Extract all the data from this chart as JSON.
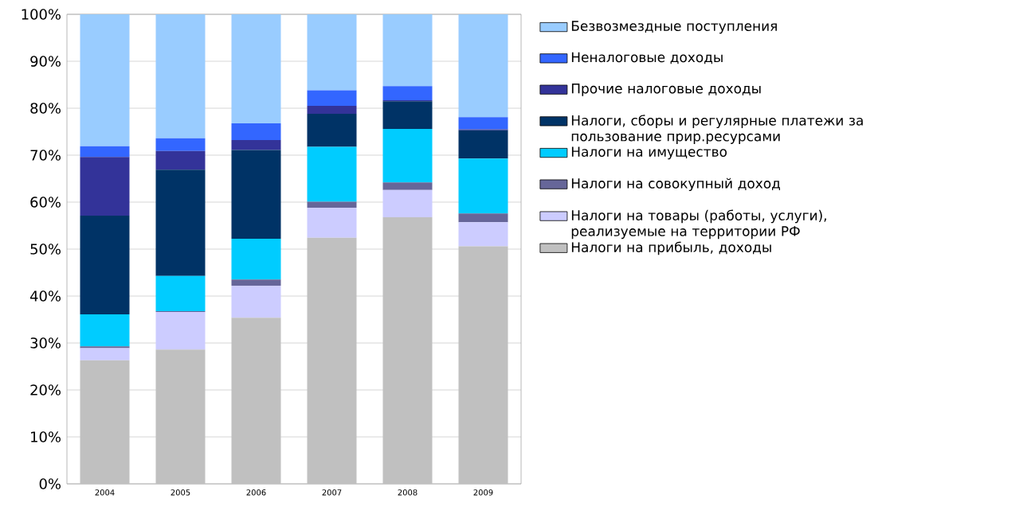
{
  "chart_data": {
    "type": "bar",
    "stacked": true,
    "categories": [
      "2004",
      "2005",
      "2006",
      "2007",
      "2008",
      "2009"
    ],
    "ylim": [
      0,
      100
    ],
    "yticks": [
      {
        "value": 0,
        "label": "0%"
      },
      {
        "value": 10,
        "label": "10%"
      },
      {
        "value": 20,
        "label": "20%"
      },
      {
        "value": 30,
        "label": "30%"
      },
      {
        "value": 40,
        "label": "40%"
      },
      {
        "value": 50,
        "label": "50%"
      },
      {
        "value": 60,
        "label": "60%"
      },
      {
        "value": 70,
        "label": "70%"
      },
      {
        "value": 80,
        "label": "80%"
      },
      {
        "value": 90,
        "label": "90%"
      },
      {
        "value": 100,
        "label": "100%"
      }
    ],
    "grid": "y",
    "legend": "right",
    "series": [
      {
        "name": "Налоги на прибыль, доходы",
        "color": "#c0c0c0",
        "values": [
          26.3,
          28.6,
          35.4,
          52.4,
          56.8,
          50.6
        ]
      },
      {
        "name": "Налоги на товары (работы, услуги), реализуемые на территории РФ",
        "color": "#ccccff",
        "values": [
          2.6,
          8.0,
          6.8,
          6.4,
          5.8,
          5.1
        ]
      },
      {
        "name": "Налоги на совокупный доход",
        "color": "#666699",
        "values": [
          0.4,
          0.2,
          1.3,
          1.3,
          1.6,
          1.9
        ]
      },
      {
        "name": "Налоги на имущество",
        "color": "#00ccff",
        "values": [
          6.8,
          7.5,
          8.7,
          11.7,
          11.4,
          11.7
        ]
      },
      {
        "name": "Налоги, сборы и регулярные платежи за пользование прир.ресурсами",
        "color": "#003366",
        "values": [
          21.0,
          22.6,
          18.9,
          7.0,
          5.9,
          6.0
        ]
      },
      {
        "name": "Прочие налоговые доходы",
        "color": "#333399",
        "values": [
          12.5,
          4.0,
          2.1,
          1.7,
          0.2,
          0.2
        ]
      },
      {
        "name": "Неналоговые доходы",
        "color": "#3366ff",
        "values": [
          2.3,
          2.7,
          3.6,
          3.3,
          3.0,
          2.6
        ]
      },
      {
        "name": "Безвозмездные поступления",
        "color": "#99ccff",
        "values": [
          28.1,
          26.4,
          23.2,
          16.2,
          15.3,
          21.9
        ]
      }
    ]
  }
}
